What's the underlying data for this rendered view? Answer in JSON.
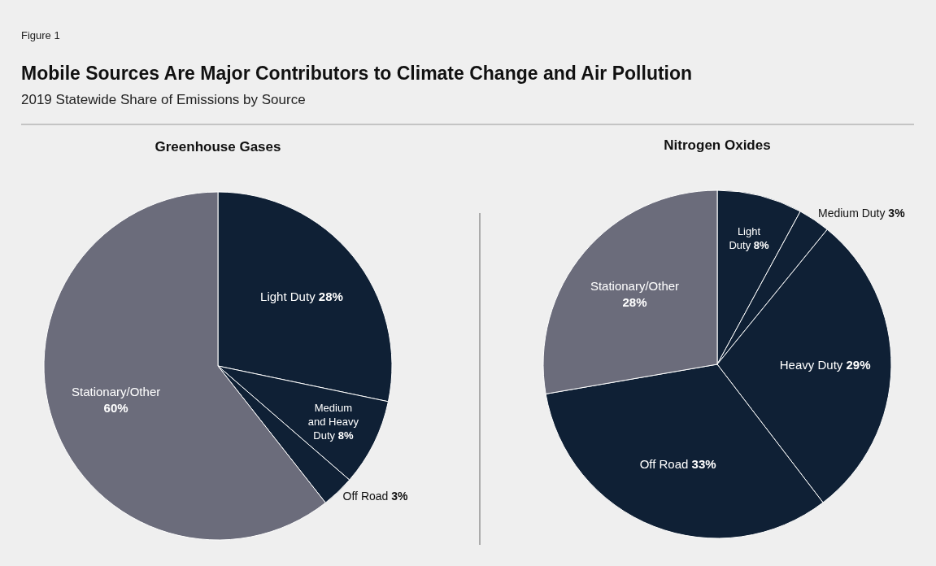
{
  "chart_data": [
    {
      "type": "other",
      "title": "Mobile Sources Are Major Contributors to Climate Change and Air Pollution",
      "subtitle": "2019 Statewide Share of Emissions by Source",
      "annotations": [
        "Figure 1"
      ]
    },
    {
      "type": "pie",
      "title": "Greenhouse Gases",
      "categories": [
        "Light Duty",
        "Medium and Heavy Duty",
        "Off Road",
        "Stationary/Other"
      ],
      "values": [
        28,
        8,
        3,
        60
      ],
      "value_labels": [
        "28%",
        "8%",
        "3%",
        "60%"
      ],
      "colors": [
        "#0f2035",
        "#0f2035",
        "#0f2035",
        "#6b6c7b"
      ]
    },
    {
      "type": "pie",
      "title": "Nitrogen Oxides",
      "categories": [
        "Light Duty",
        "Medium Duty",
        "Heavy Duty",
        "Off Road",
        "Stationary/Other"
      ],
      "values": [
        8,
        3,
        29,
        33,
        28
      ],
      "value_labels": [
        "8%",
        "3%",
        "29%",
        "33%",
        "28%"
      ],
      "colors": [
        "#0f2035",
        "#0f2035",
        "#0f2035",
        "#0f2035",
        "#6b6c7b"
      ]
    }
  ]
}
